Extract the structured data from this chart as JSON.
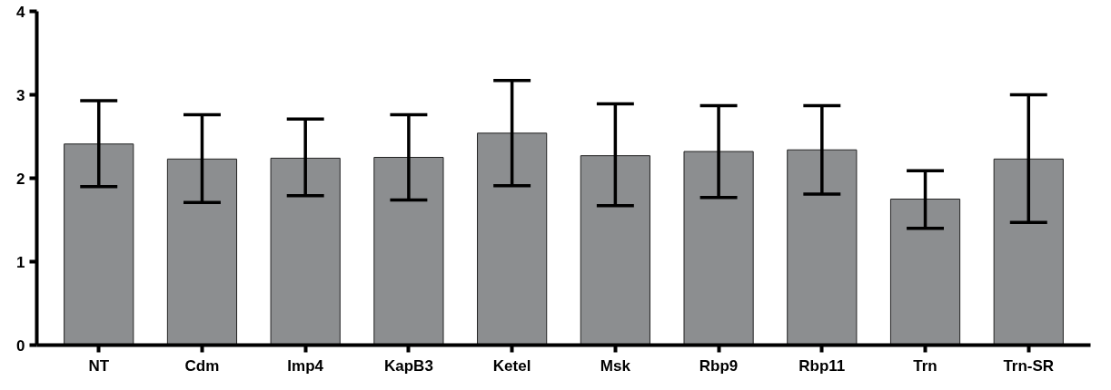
{
  "chart_data": {
    "type": "bar",
    "categories": [
      "NT",
      "Cdm",
      "Imp4",
      "KapB3",
      "Ketel",
      "Msk",
      "Rbp9",
      "Rbp11",
      "Trn",
      "Trn-SR"
    ],
    "series": [
      {
        "color": "#8c8e90",
        "values": [
          2.41,
          2.23,
          2.24,
          2.25,
          2.54,
          2.27,
          2.32,
          2.34,
          1.75,
          2.23
        ],
        "errors": [
          [
            1.9,
            2.93
          ],
          [
            1.71,
            2.76
          ],
          [
            1.79,
            2.71
          ],
          [
            1.74,
            2.76
          ],
          [
            1.91,
            3.17
          ],
          [
            1.67,
            2.89
          ],
          [
            1.77,
            2.87
          ],
          [
            1.81,
            2.87
          ],
          [
            1.4,
            2.09
          ],
          [
            1.47,
            3.0
          ]
        ]
      }
    ],
    "ylim": [
      0,
      4
    ],
    "yticks": [
      0,
      1,
      2,
      3,
      4
    ],
    "grid": false
  }
}
